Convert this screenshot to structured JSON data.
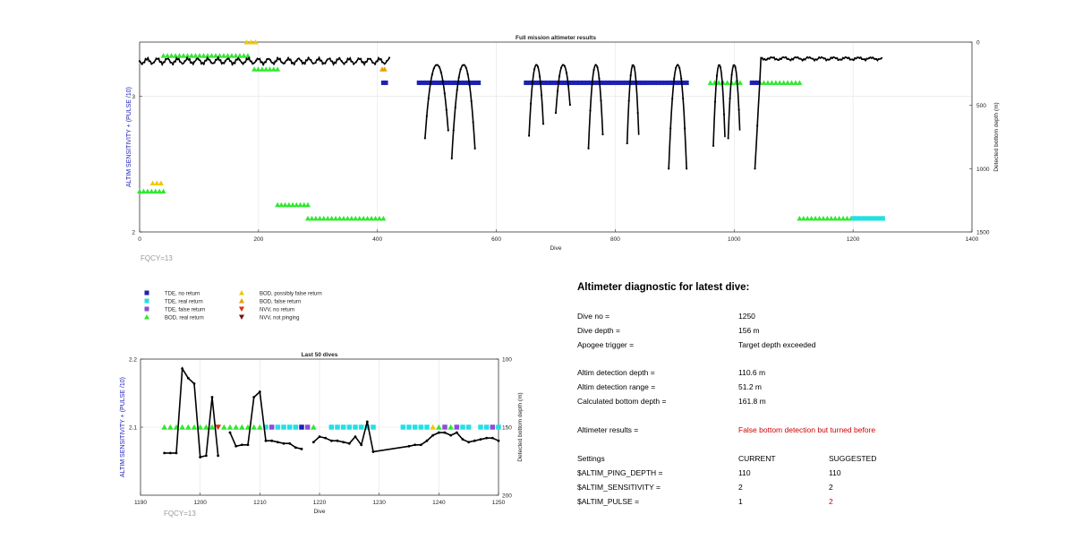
{
  "chart_data": [
    {
      "type": "scatter",
      "title": "Full mission altimeter results",
      "xlabel": "Dive",
      "ylabel_left": "ALTIM SENSITIVITY + (PULSE /10)",
      "ylabel_right": "Detected bottom depth (m)",
      "xlim": [
        0,
        1400
      ],
      "ylim_left": [
        2,
        3.4
      ],
      "ylim_right": [
        1500,
        0
      ],
      "x_ticks": [
        "0",
        "200",
        "400",
        "600",
        "800",
        "1000",
        "1200",
        "1400"
      ],
      "y_ticks_left": [
        "2",
        "3"
      ],
      "y_ticks_right": [
        "0",
        "500",
        "1000",
        "1500"
      ],
      "footnote": "FQCY=13",
      "grid": true,
      "segments": [
        {
          "kind": "bod",
          "x0": 0,
          "x1": 40,
          "y": 2.3
        },
        {
          "kind": "bod",
          "x0": 40,
          "x1": 182,
          "y": 3.3
        },
        {
          "kind": "bod",
          "x0": 193,
          "x1": 232,
          "y": 3.2
        },
        {
          "kind": "bod",
          "x0": 232,
          "x1": 283,
          "y": 2.2
        },
        {
          "kind": "bod",
          "x0": 283,
          "x1": 410,
          "y": 2.1
        },
        {
          "kind": "bod",
          "x0": 475,
          "x1": 520,
          "y": 3.1
        },
        {
          "kind": "bod",
          "x0": 530,
          "x1": 570,
          "y": 3.1
        },
        {
          "kind": "bod",
          "x0": 650,
          "x1": 690,
          "y": 3.1
        },
        {
          "kind": "bod",
          "x0": 710,
          "x1": 790,
          "y": 3.1
        },
        {
          "kind": "bod",
          "x0": 815,
          "x1": 850,
          "y": 3.1
        },
        {
          "kind": "bod",
          "x0": 895,
          "x1": 920,
          "y": 3.1
        },
        {
          "kind": "bod",
          "x0": 960,
          "x1": 1010,
          "y": 3.1
        },
        {
          "kind": "bod",
          "x0": 1030,
          "x1": 1110,
          "y": 3.1
        },
        {
          "kind": "bod",
          "x0": 1110,
          "x1": 1250,
          "y": 2.1
        },
        {
          "kind": "tde_no",
          "x0": 410,
          "x1": 414,
          "y": 3.1
        },
        {
          "kind": "tde_no",
          "x0": 470,
          "x1": 570,
          "y": 3.1
        },
        {
          "kind": "tde_no",
          "x0": 650,
          "x1": 920,
          "y": 3.1
        },
        {
          "kind": "tde_no",
          "x0": 1030,
          "x1": 1040,
          "y": 3.1
        },
        {
          "kind": "tde_real",
          "x0": 1200,
          "x1": 1250,
          "y": 2.1
        },
        {
          "kind": "bod_pf",
          "x0": 180,
          "x1": 195,
          "y": 3.4
        },
        {
          "kind": "bod_pf",
          "x0": 22,
          "x1": 36,
          "y": 2.36
        },
        {
          "kind": "bod_false",
          "x0": 408,
          "x1": 412,
          "y": 3.2
        }
      ],
      "depth_segments": [
        {
          "x0": 0,
          "x1": 420,
          "depth": "flat ~140-190 m"
        },
        {
          "x0": 480,
          "x1": 570,
          "depth": "dives 180-920 m"
        },
        {
          "x0": 655,
          "x1": 920,
          "depth": "dives 180-1000 m"
        },
        {
          "x0": 965,
          "x1": 1040,
          "depth": "dives 180-1000 m"
        },
        {
          "x0": 1040,
          "x1": 1250,
          "depth": "flat ~120-160 m"
        }
      ]
    },
    {
      "type": "line",
      "title": "Last 50 dives",
      "xlabel": "Dive",
      "ylabel_left": "ALTIM SENSITIVITY + (PULSE /10)",
      "ylabel_right": "Detected bottom depth (m)",
      "xlim": [
        1190,
        1250
      ],
      "ylim_left": [
        2,
        2.2
      ],
      "ylim_right": [
        200,
        100
      ],
      "x_ticks": [
        "1190",
        "1200",
        "1210",
        "1220",
        "1230",
        "1240",
        "1250"
      ],
      "y_ticks_left": [
        "2.1",
        "2.2"
      ],
      "y_ticks_right": [
        "100",
        "150",
        "200"
      ],
      "footnote": "FQCY=13",
      "grid": true,
      "markers": [
        {
          "x": 1194,
          "k": "bod"
        },
        {
          "x": 1195,
          "k": "bod"
        },
        {
          "x": 1196,
          "k": "bod"
        },
        {
          "x": 1197,
          "k": "bod"
        },
        {
          "x": 1198,
          "k": "bod"
        },
        {
          "x": 1199,
          "k": "bod"
        },
        {
          "x": 1200,
          "k": "bod"
        },
        {
          "x": 1201,
          "k": "bod"
        },
        {
          "x": 1202,
          "k": "bod"
        },
        {
          "x": 1203,
          "k": "nvv_no"
        },
        {
          "x": 1204,
          "k": "bod"
        },
        {
          "x": 1205,
          "k": "bod"
        },
        {
          "x": 1206,
          "k": "bod"
        },
        {
          "x": 1207,
          "k": "bod"
        },
        {
          "x": 1208,
          "k": "bod"
        },
        {
          "x": 1209,
          "k": "bod"
        },
        {
          "x": 1210,
          "k": "bod"
        },
        {
          "x": 1211,
          "k": "tde_real"
        },
        {
          "x": 1212,
          "k": "tde_false"
        },
        {
          "x": 1213,
          "k": "tde_real"
        },
        {
          "x": 1214,
          "k": "tde_real"
        },
        {
          "x": 1215,
          "k": "tde_real"
        },
        {
          "x": 1216,
          "k": "tde_real"
        },
        {
          "x": 1217,
          "k": "tde_no"
        },
        {
          "x": 1218,
          "k": "tde_false"
        },
        {
          "x": 1219,
          "k": "bod"
        },
        {
          "x": 1222,
          "k": "tde_real"
        },
        {
          "x": 1223,
          "k": "tde_real"
        },
        {
          "x": 1224,
          "k": "tde_real"
        },
        {
          "x": 1225,
          "k": "tde_real"
        },
        {
          "x": 1226,
          "k": "tde_real"
        },
        {
          "x": 1227,
          "k": "tde_real"
        },
        {
          "x": 1228,
          "k": "tde_real"
        },
        {
          "x": 1229,
          "k": "tde_real"
        },
        {
          "x": 1234,
          "k": "tde_real"
        },
        {
          "x": 1235,
          "k": "tde_real"
        },
        {
          "x": 1236,
          "k": "tde_real"
        },
        {
          "x": 1237,
          "k": "tde_real"
        },
        {
          "x": 1238,
          "k": "tde_real"
        },
        {
          "x": 1239,
          "k": "bod_pf"
        },
        {
          "x": 1240,
          "k": "bod"
        },
        {
          "x": 1241,
          "k": "tde_false"
        },
        {
          "x": 1242,
          "k": "bod"
        },
        {
          "x": 1243,
          "k": "tde_false"
        },
        {
          "x": 1244,
          "k": "tde_real"
        },
        {
          "x": 1245,
          "k": "tde_real"
        },
        {
          "x": 1247,
          "k": "tde_real"
        },
        {
          "x": 1248,
          "k": "tde_real"
        },
        {
          "x": 1249,
          "k": "tde_false"
        },
        {
          "x": 1250,
          "k": "tde_real"
        }
      ],
      "depth_series": [
        [
          [
            1194,
            169
          ],
          [
            1195,
            169
          ],
          [
            1196,
            169
          ],
          [
            1197,
            107
          ],
          [
            1198,
            114
          ],
          [
            1199,
            118
          ],
          [
            1200,
            172
          ],
          [
            1201,
            171
          ],
          [
            1202,
            128
          ],
          [
            1203,
            171
          ]
        ],
        [
          [
            1205,
            154
          ],
          [
            1206,
            164
          ],
          [
            1207,
            163
          ],
          [
            1208,
            163
          ],
          [
            1209,
            128
          ],
          [
            1210,
            124
          ],
          [
            1211,
            160
          ],
          [
            1212,
            160
          ],
          [
            1213,
            161
          ],
          [
            1214,
            162
          ],
          [
            1215,
            162
          ],
          [
            1216,
            165
          ],
          [
            1217,
            166
          ]
        ],
        [
          [
            1219,
            161
          ],
          [
            1220,
            157
          ],
          [
            1221,
            158
          ],
          [
            1222,
            160
          ],
          [
            1223,
            160
          ],
          [
            1224,
            161
          ],
          [
            1225,
            162
          ],
          [
            1226,
            157
          ],
          [
            1227,
            163
          ],
          [
            1228,
            146
          ],
          [
            1229,
            168
          ]
        ],
        [
          [
            1229,
            168
          ],
          [
            1235,
            164
          ],
          [
            1236,
            163
          ],
          [
            1237,
            163
          ],
          [
            1238,
            160
          ],
          [
            1239,
            156
          ],
          [
            1240,
            154
          ],
          [
            1241,
            154
          ],
          [
            1242,
            156
          ],
          [
            1243,
            154
          ],
          [
            1244,
            159
          ],
          [
            1245,
            161
          ],
          [
            1246,
            160
          ],
          [
            1247,
            159
          ],
          [
            1248,
            158
          ],
          [
            1249,
            158
          ],
          [
            1250,
            160
          ]
        ]
      ]
    }
  ],
  "legend": {
    "items": [
      {
        "label": "TDE, no return",
        "kind": "tde_no"
      },
      {
        "label": "TDE, real return",
        "kind": "tde_real"
      },
      {
        "label": "TDE, false return",
        "kind": "tde_false"
      },
      {
        "label": "BOD, real return",
        "kind": "bod"
      },
      {
        "label": "BOD, possibly false return",
        "kind": "bod_pf"
      },
      {
        "label": "BOD, false return",
        "kind": "bod_false"
      },
      {
        "label": "NVV, no return",
        "kind": "nvv_no"
      },
      {
        "label": "NVV, not pinging",
        "kind": "nvv_np"
      }
    ]
  },
  "colors": {
    "tde_no": "#1f1fb8",
    "tde_real": "#22e0e6",
    "tde_false": "#8a4fd8",
    "bod": "#2ee82e",
    "bod_pf": "#f0c800",
    "bod_false": "#e8a000",
    "nvv_no": "#d83000",
    "nvv_np": "#7a1010",
    "axis_label": "#1a1ab8",
    "footnote": "#9a9a9a",
    "alert": "#d00000"
  },
  "diagnostic": {
    "title": "Altimeter diagnostic for latest dive:",
    "dive_no_label": "Dive no =",
    "dive_no": "1250",
    "dive_depth_label": "Dive depth =",
    "dive_depth": "156 m",
    "apogee_label": "Apogee trigger =",
    "apogee": "Target depth exceeded",
    "altim_depth_label": "Altim detection depth =",
    "altim_depth": "110.6 m",
    "altim_range_label": "Altim detection range =",
    "altim_range": "51.2 m",
    "calc_bottom_label": "Calculated bottom depth =",
    "calc_bottom": "161.8 m",
    "results_label": "Altimeter results =",
    "results": "False bottom detection but turned before",
    "settings_label": "Settings",
    "current_label": "CURRENT",
    "suggested_label": "SUGGESTED",
    "ping_label": "$ALTIM_PING_DEPTH =",
    "ping_current": "110",
    "ping_suggested": "110",
    "sens_label": "$ALTIM_SENSITIVITY =",
    "sens_current": "2",
    "sens_suggested": "2",
    "pulse_label": "$ALTIM_PULSE =",
    "pulse_current": "1",
    "pulse_suggested": "2"
  }
}
